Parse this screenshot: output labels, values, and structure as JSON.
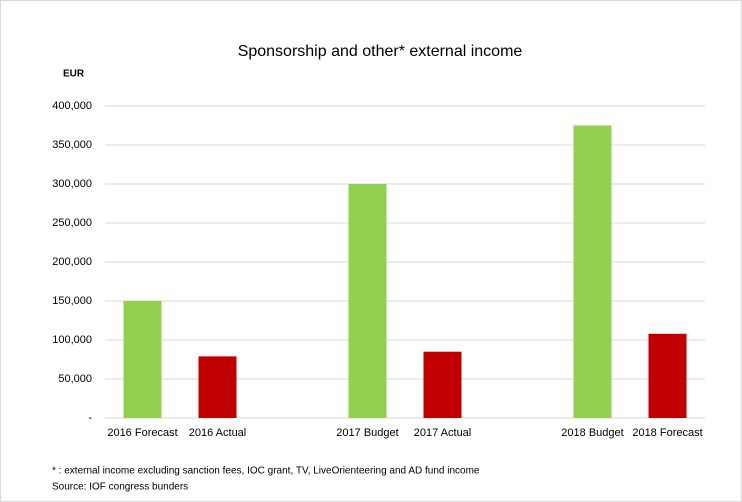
{
  "chart_data": {
    "type": "bar",
    "title": "Sponsorship and other* external income",
    "y_axis_label": "EUR",
    "categories": [
      "2016 Forecast",
      "2016 Actual",
      null,
      "2017 Budget",
      "2017 Actual",
      null,
      "2018 Budget",
      "2018 Forecast"
    ],
    "values": [
      150000,
      79000,
      null,
      300000,
      85000,
      null,
      375000,
      108000
    ],
    "colors": [
      "#92d050",
      "#c00000",
      null,
      "#92d050",
      "#c00000",
      null,
      "#92d050",
      "#c00000"
    ],
    "ylim": [
      0,
      400000
    ],
    "yticks": [
      {
        "value": 0,
        "label": "-"
      },
      {
        "value": 50000,
        "label": "50,000"
      },
      {
        "value": 100000,
        "label": "100,000"
      },
      {
        "value": 150000,
        "label": "150,000"
      },
      {
        "value": 200000,
        "label": "200,000"
      },
      {
        "value": 250000,
        "label": "250,000"
      },
      {
        "value": 300000,
        "label": "300,000"
      },
      {
        "value": 350000,
        "label": "350,000"
      },
      {
        "value": 400000,
        "label": "400,000"
      }
    ],
    "grid": true,
    "notes": [
      "* :  external income excluding sanction fees, IOC grant, TV, LiveOrienteering and AD fund income",
      "Source: IOF congress bunders"
    ]
  }
}
